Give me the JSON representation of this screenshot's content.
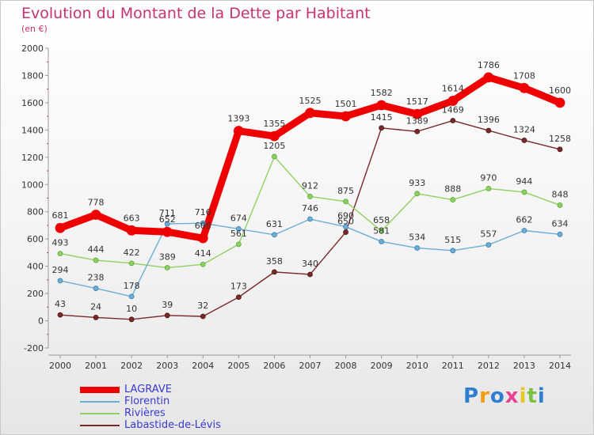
{
  "title": "Evolution du Montant de la Dette par Habitant",
  "unit": "(en €)",
  "brand": {
    "letters": [
      "P",
      "r",
      "o",
      "x",
      "i",
      "t",
      "i"
    ],
    "colors": [
      "#2f7fd0",
      "#f39c12",
      "#2f7fd0",
      "#e84393",
      "#e8c81e",
      "#7ac142",
      "#2f7fd0"
    ]
  },
  "chart_data": {
    "type": "line",
    "title": "Evolution du Montant de la Dette par Habitant",
    "ylabel": "(en €)",
    "xlabel": "",
    "x": [
      2000,
      2001,
      2002,
      2003,
      2004,
      2005,
      2006,
      2007,
      2008,
      2009,
      2010,
      2011,
      2012,
      2013,
      2014
    ],
    "ylim": [
      -200,
      2000
    ],
    "yticks": [
      -200,
      0,
      200,
      400,
      600,
      800,
      1000,
      1200,
      1400,
      1600,
      1800,
      2000
    ],
    "grid": false,
    "legend": "bottom-left",
    "series": [
      {
        "name": "LAGRAVE",
        "color": "#ee0000",
        "values": [
          681,
          778,
          663,
          652,
          606,
          1393,
          1355,
          1525,
          1501,
          1582,
          1517,
          1614,
          1786,
          1708,
          1600
        ]
      },
      {
        "name": "Florentin",
        "color": "#6baed6",
        "values": [
          294,
          238,
          178,
          711,
          716,
          674,
          631,
          746,
          690,
          581,
          534,
          515,
          557,
          662,
          634
        ]
      },
      {
        "name": "Rivières",
        "color": "#8fd160",
        "values": [
          493,
          444,
          422,
          389,
          414,
          561,
          1205,
          912,
          875,
          658,
          933,
          888,
          970,
          944,
          848
        ]
      },
      {
        "name": "Labastide-de-Lévis",
        "color": "#7b2828",
        "values": [
          43,
          24,
          10,
          39,
          32,
          173,
          358,
          340,
          650,
          1415,
          1389,
          1469,
          1396,
          1324,
          1258
        ]
      }
    ]
  }
}
